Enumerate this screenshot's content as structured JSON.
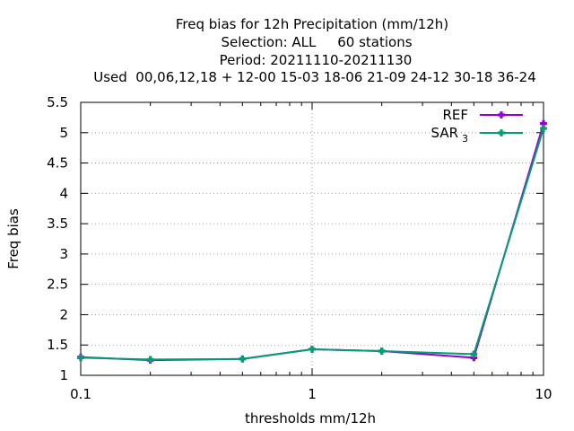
{
  "chart_data": {
    "type": "line",
    "title_lines": [
      "Freq bias  for 12h Precipitation (mm/12h)",
      "Selection: ALL     60 stations",
      "Period: 20211110-20211130",
      "Used  00,06,12,18 + 12-00 15-03 18-06 21-09 24-12 30-18 36-24"
    ],
    "xlabel": "thresholds mm/12h",
    "ylabel": "Freq bias",
    "x_scale": "log",
    "xlim": [
      0.1,
      10
    ],
    "ylim": [
      1,
      5.5
    ],
    "x_ticks": [
      0.1,
      1,
      10
    ],
    "x_tick_labels": [
      "0.1",
      "1",
      "10"
    ],
    "y_ticks": [
      1,
      1.5,
      2,
      2.5,
      3,
      3.5,
      4,
      4.5,
      5,
      5.5
    ],
    "y_tick_labels": [
      "1",
      "1.5",
      "2",
      "2.5",
      "3",
      "3.5",
      "4",
      "4.5",
      "5",
      "5.5"
    ],
    "grid": true,
    "legend_position": "top-right",
    "x": [
      0.1,
      0.2,
      0.5,
      1,
      2,
      5,
      10
    ],
    "series": [
      {
        "name": "REF",
        "color": "#9400d3",
        "values": [
          1.3,
          1.25,
          1.27,
          1.43,
          1.4,
          1.29,
          5.15
        ]
      },
      {
        "name": "SAR",
        "name_subscript": "3",
        "color": "#009e73",
        "values": [
          1.29,
          1.26,
          1.27,
          1.43,
          1.4,
          1.35,
          5.07
        ]
      }
    ]
  }
}
